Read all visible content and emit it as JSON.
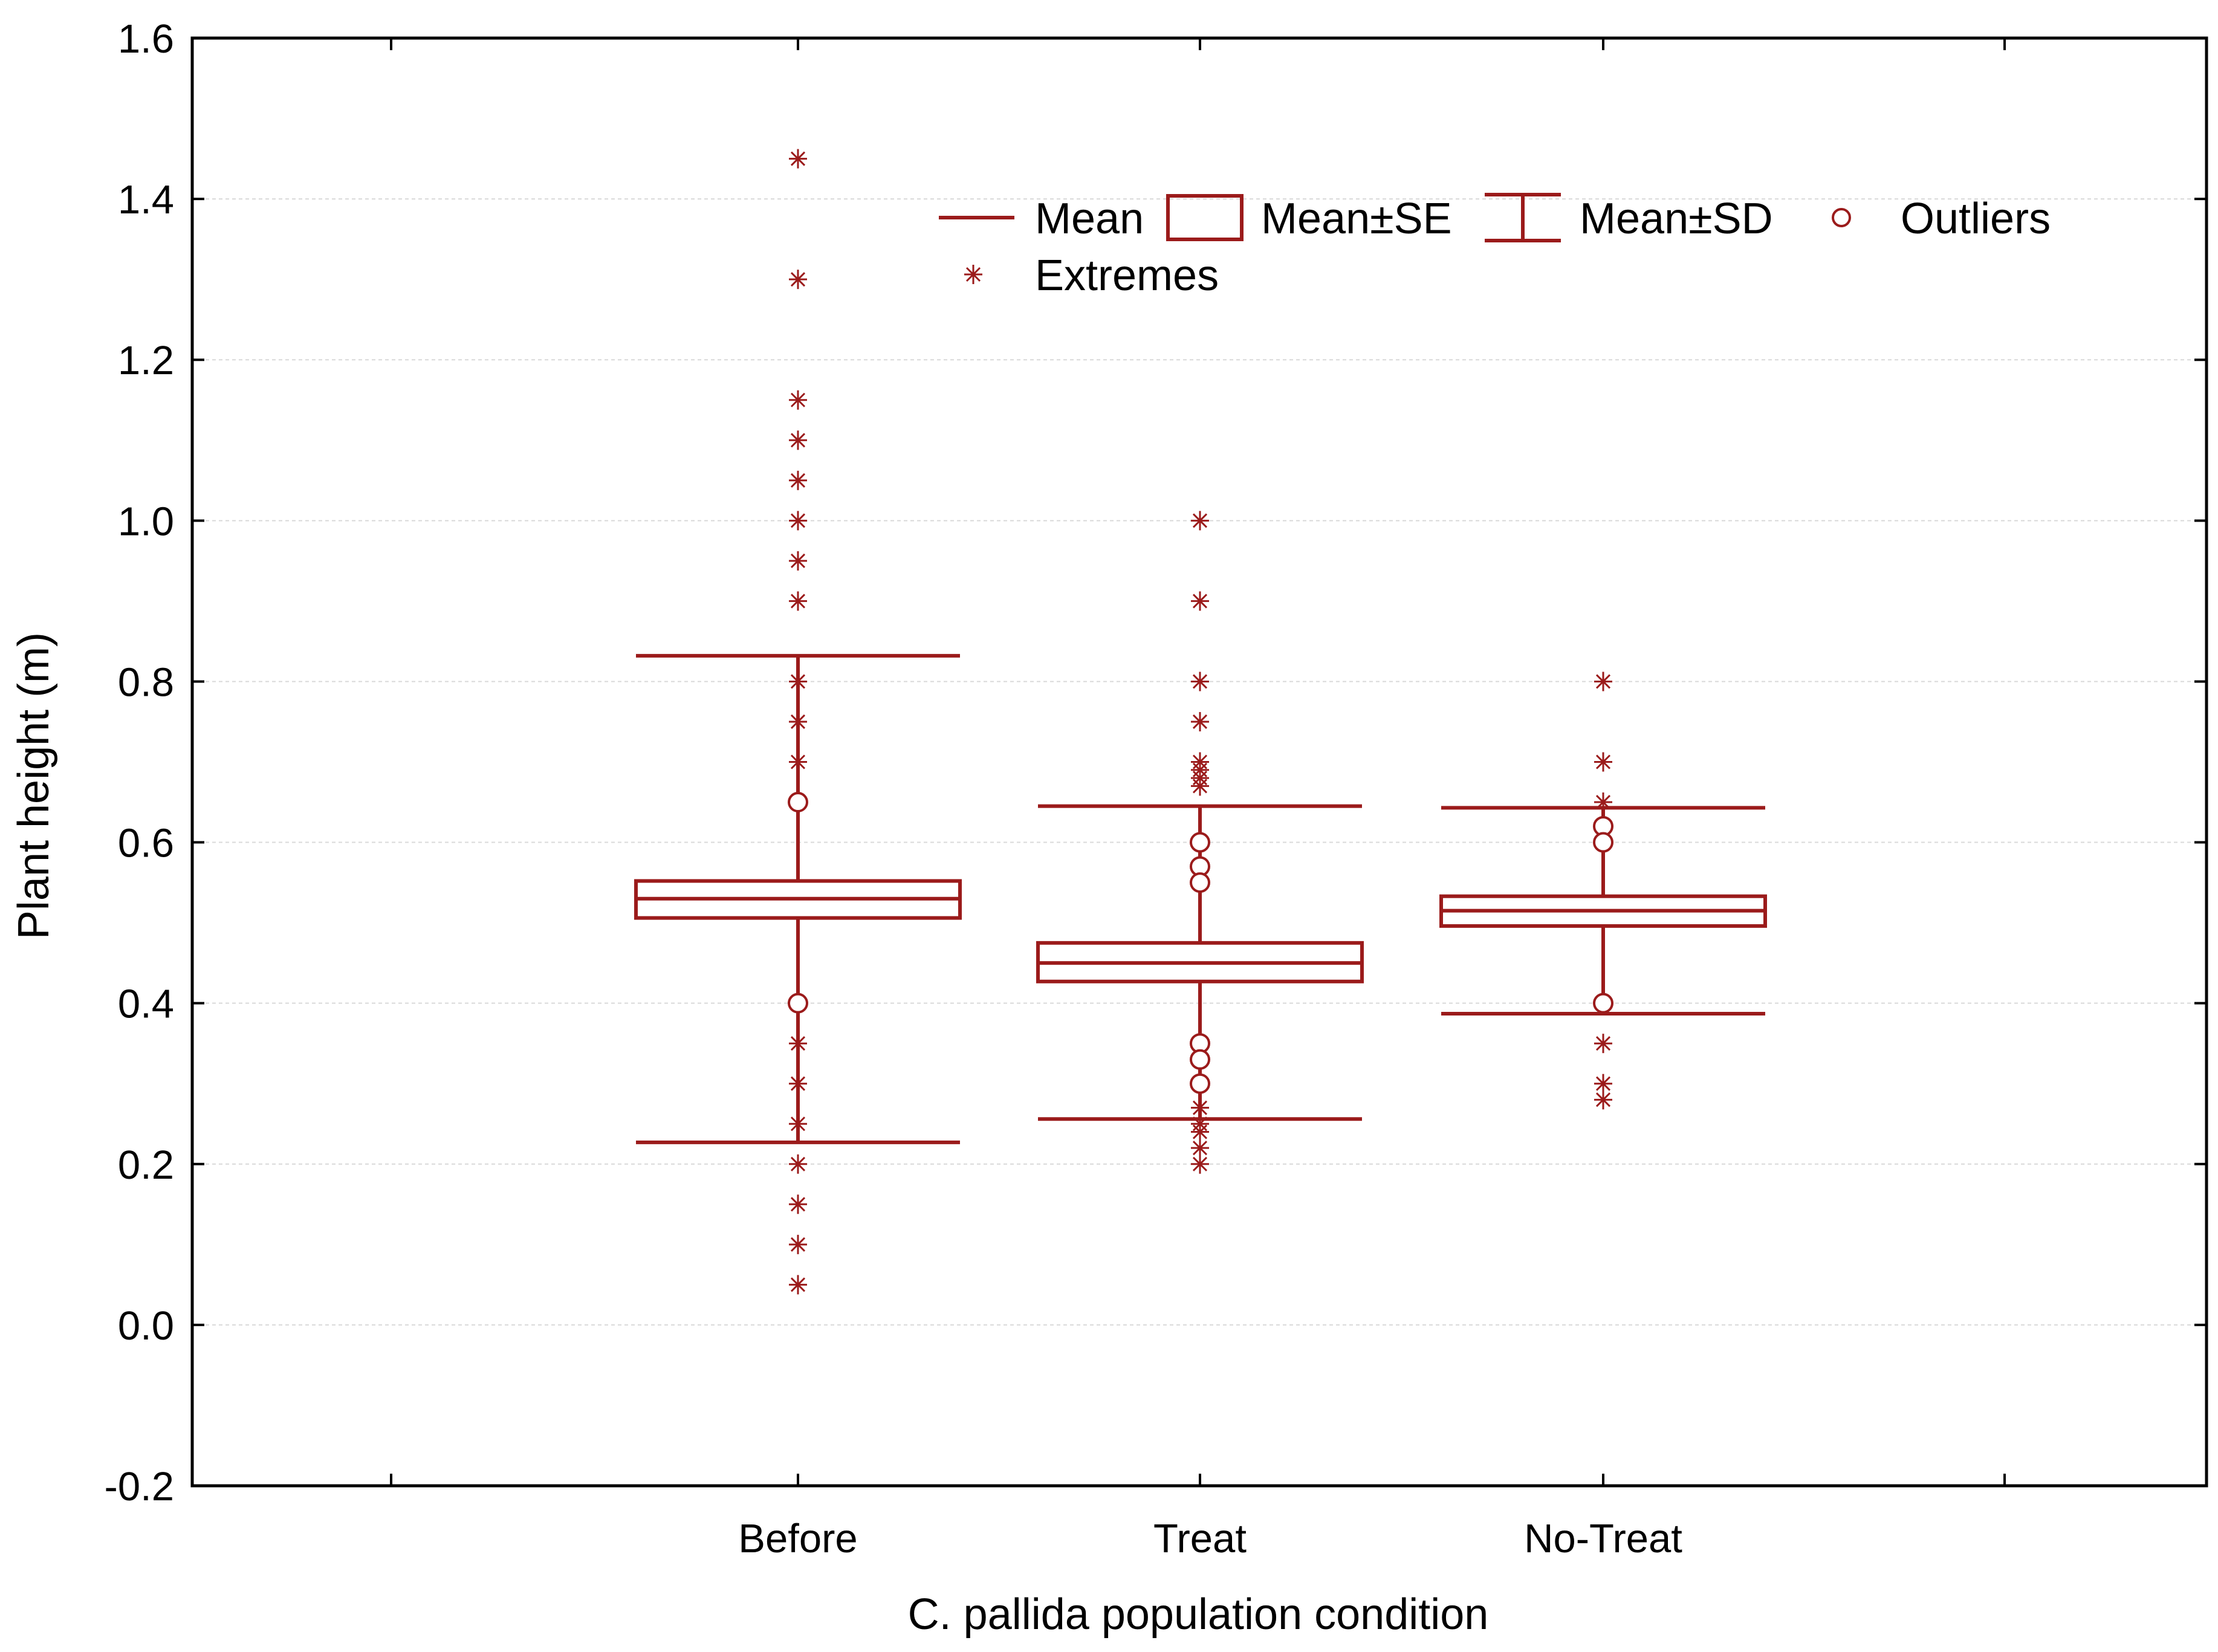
{
  "chart_data": {
    "type": "boxplot",
    "title": "",
    "xlabel": "C. pallida population condition",
    "ylabel": "Plant height (m)",
    "ylim": [
      -0.2,
      1.6
    ],
    "yticks": [
      "-0.2",
      "0.0",
      "0.2",
      "0.4",
      "0.6",
      "0.8",
      "1.0",
      "1.2",
      "1.4",
      "1.6"
    ],
    "ytick_values": [
      -0.2,
      0.0,
      0.2,
      0.4,
      0.6,
      0.8,
      1.0,
      1.2,
      1.4,
      1.6
    ],
    "grid": true,
    "colors": {
      "series": "#9b1b1b",
      "axis": "#000000",
      "grid": "#d9d9d9"
    },
    "categories": [
      "Before",
      "Treat",
      "No-Treat"
    ],
    "series": [
      {
        "name": "Before",
        "mean": 0.53,
        "se_low": 0.506,
        "se_high": 0.552,
        "sd_low": 0.227,
        "sd_high": 0.832,
        "outliers": [
          0.65,
          0.4
        ],
        "extremes": [
          1.45,
          1.3,
          1.15,
          1.1,
          1.05,
          1.0,
          0.95,
          0.9,
          0.8,
          0.75,
          0.7,
          0.35,
          0.3,
          0.25,
          0.2,
          0.15,
          0.1,
          0.05
        ]
      },
      {
        "name": "Treat",
        "mean": 0.45,
        "se_low": 0.427,
        "se_high": 0.475,
        "sd_low": 0.256,
        "sd_high": 0.645,
        "outliers": [
          0.6,
          0.57,
          0.55,
          0.35,
          0.33,
          0.3
        ],
        "extremes": [
          1.0,
          0.9,
          0.8,
          0.75,
          0.7,
          0.69,
          0.68,
          0.67,
          0.27,
          0.25,
          0.24,
          0.22,
          0.2
        ]
      },
      {
        "name": "No-Treat",
        "mean": 0.515,
        "se_low": 0.496,
        "se_high": 0.533,
        "sd_low": 0.387,
        "sd_high": 0.643,
        "outliers": [
          0.62,
          0.6,
          0.4
        ],
        "extremes": [
          0.8,
          0.7,
          0.65,
          0.35,
          0.3,
          0.28
        ]
      }
    ],
    "legend": {
      "position": "top-right",
      "items": [
        {
          "label": "Mean",
          "symbol": "line"
        },
        {
          "label": "Mean±SE",
          "symbol": "box"
        },
        {
          "label": "Mean±SD",
          "symbol": "whisker"
        },
        {
          "label": "Outliers",
          "symbol": "circle"
        },
        {
          "label": "Extremes",
          "symbol": "asterisk"
        }
      ]
    }
  }
}
